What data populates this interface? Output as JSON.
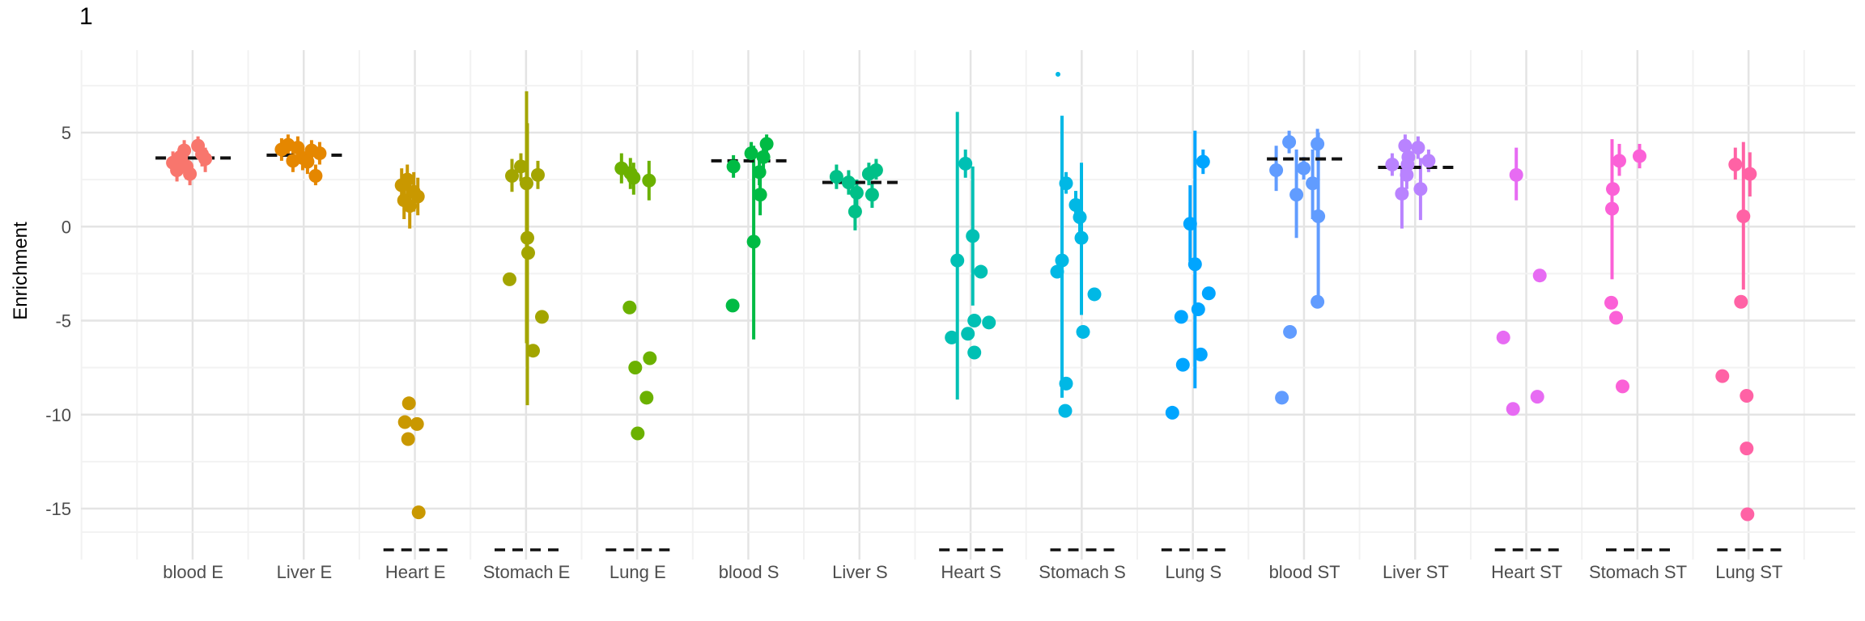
{
  "figure": {
    "title": "1"
  },
  "chart_data": {
    "type": "scatter",
    "title": "1",
    "xlabel": "",
    "ylabel": "Enrichment",
    "ylim": [
      -17.5,
      9.5
    ],
    "yticks": [
      {
        "label": "5",
        "value": 5
      },
      {
        "label": "0",
        "value": 0
      },
      {
        "label": "-5",
        "value": -5
      },
      {
        "label": "-10",
        "value": -10
      },
      {
        "label": "-15",
        "value": -15
      }
    ],
    "yminor": [
      7.5,
      2.5,
      -2.5,
      -7.5,
      -12.5,
      -16.25
    ],
    "grid": true,
    "legend": false,
    "mean_dash_color": "#111111",
    "floor_dash_color": "#111111",
    "categories": [
      {
        "name": "blood E",
        "color": "#F8766D",
        "mean": 3.65,
        "floor_dash": false,
        "points": [
          {
            "dx": -25,
            "v": 3.4,
            "lo": 2.8,
            "hi": 4.0
          },
          {
            "dx": -20,
            "v": 3.0,
            "lo": 2.4,
            "hi": 3.6
          },
          {
            "dx": -16,
            "v": 3.7,
            "lo": 3.0,
            "hi": 4.3
          },
          {
            "dx": -11,
            "v": 4.05,
            "lo": 3.5,
            "hi": 4.6
          },
          {
            "dx": -8,
            "v": 3.2,
            "lo": 2.5,
            "hi": 3.8
          },
          {
            "dx": -4,
            "v": 2.8,
            "lo": 2.2,
            "hi": 3.4
          },
          {
            "dx": 6,
            "v": 4.3,
            "lo": 3.8,
            "hi": 4.8
          },
          {
            "dx": 11,
            "v": 3.85,
            "lo": 3.2,
            "hi": 4.4
          },
          {
            "dx": 15,
            "v": 3.6,
            "lo": 2.9,
            "hi": 4.2
          }
        ]
      },
      {
        "name": "Liver E",
        "color": "#E58700",
        "mean": 3.8,
        "floor_dash": false,
        "points": [
          {
            "dx": -28,
            "v": 4.1,
            "lo": 3.5,
            "hi": 4.7
          },
          {
            "dx": -20,
            "v": 4.35,
            "lo": 3.8,
            "hi": 4.9
          },
          {
            "dx": -14,
            "v": 3.5,
            "lo": 2.9,
            "hi": 4.1
          },
          {
            "dx": -8,
            "v": 4.2,
            "lo": 3.6,
            "hi": 4.8
          },
          {
            "dx": -2,
            "v": 3.65,
            "lo": 3.0,
            "hi": 4.2
          },
          {
            "dx": 4,
            "v": 3.45,
            "lo": 2.8,
            "hi": 4.0
          },
          {
            "dx": 9,
            "v": 4.05,
            "lo": 3.4,
            "hi": 4.6
          },
          {
            "dx": 14,
            "v": 2.7,
            "lo": 2.2,
            "hi": 3.3
          },
          {
            "dx": 19,
            "v": 3.9,
            "lo": 3.3,
            "hi": 4.5
          }
        ]
      },
      {
        "name": "Heart E",
        "color": "#C99800",
        "mean": null,
        "floor_dash": true,
        "points": [
          {
            "dx": -17,
            "v": 2.2,
            "lo": 1.3,
            "hi": 3.1
          },
          {
            "dx": -10,
            "v": 2.5,
            "lo": 1.7,
            "hi": 3.3
          },
          {
            "dx": -14,
            "v": 1.4,
            "lo": 0.4,
            "hi": 2.4
          },
          {
            "dx": -2,
            "v": 1.85,
            "lo": 0.8,
            "hi": 2.9
          },
          {
            "dx": -7,
            "v": 1.1,
            "lo": -0.1,
            "hi": 2.3
          },
          {
            "dx": 3,
            "v": 1.6,
            "lo": 0.6,
            "hi": 2.6
          },
          {
            "dx": -8,
            "v": -9.4
          },
          {
            "dx": -13,
            "v": -10.4
          },
          {
            "dx": 2,
            "v": -10.5
          },
          {
            "dx": -9,
            "v": -11.3
          },
          {
            "dx": 4,
            "v": -15.2
          }
        ]
      },
      {
        "name": "Stomach E",
        "color": "#A3A500",
        "mean": null,
        "floor_dash": true,
        "points": [
          {
            "dx": -18,
            "v": 2.7,
            "lo": 1.85,
            "hi": 3.6
          },
          {
            "dx": -7,
            "v": 3.2,
            "lo": 2.4,
            "hi": 3.9
          },
          {
            "dx": 0,
            "v": 2.3,
            "lo": -6.2,
            "hi": 7.2
          },
          {
            "dx": 14,
            "v": 2.75,
            "lo": 2.0,
            "hi": 3.5
          },
          {
            "dx": 1,
            "v": -0.6,
            "lo": -9.5,
            "hi": 5.5
          },
          {
            "dx": 2,
            "v": -1.4
          },
          {
            "dx": -21,
            "v": -2.8
          },
          {
            "dx": 19,
            "v": -4.8
          },
          {
            "dx": 8,
            "v": -6.6
          }
        ]
      },
      {
        "name": "Lung E",
        "color": "#6BB100",
        "mean": null,
        "floor_dash": true,
        "points": [
          {
            "dx": -20,
            "v": 3.1,
            "lo": 2.3,
            "hi": 3.9
          },
          {
            "dx": -9,
            "v": 2.85,
            "lo": 2.0,
            "hi": 3.65
          },
          {
            "dx": -5,
            "v": 2.6,
            "lo": 1.7,
            "hi": 3.4
          },
          {
            "dx": 14,
            "v": 2.45,
            "lo": 1.4,
            "hi": 3.5
          },
          {
            "dx": -10,
            "v": -4.3
          },
          {
            "dx": 15,
            "v": -7.0
          },
          {
            "dx": -3,
            "v": -7.5
          },
          {
            "dx": 11,
            "v": -9.1
          },
          {
            "dx": 0,
            "v": -11.0
          }
        ]
      },
      {
        "name": "blood S",
        "color": "#00BB44",
        "mean": 3.5,
        "floor_dash": false,
        "points": [
          {
            "dx": -19,
            "v": 3.2,
            "lo": 2.6,
            "hi": 3.8
          },
          {
            "dx": 3,
            "v": 3.9,
            "lo": 3.4,
            "hi": 4.5
          },
          {
            "dx": 22,
            "v": 4.4,
            "lo": 3.9,
            "hi": 4.9
          },
          {
            "dx": 18,
            "v": 3.7,
            "lo": 3.1,
            "hi": 4.3
          },
          {
            "dx": 13,
            "v": 2.9,
            "lo": 2.2,
            "hi": 3.5
          },
          {
            "dx": 14,
            "v": 1.7,
            "lo": 0.6,
            "hi": 2.7
          },
          {
            "dx": 6,
            "v": -0.8,
            "lo": -6.0,
            "hi": 4.3
          },
          {
            "dx": -20,
            "v": -4.2
          }
        ]
      },
      {
        "name": "Liver S",
        "color": "#00C088",
        "mean": 2.35,
        "floor_dash": false,
        "points": [
          {
            "dx": -29,
            "v": 2.65,
            "lo": 2.0,
            "hi": 3.3
          },
          {
            "dx": -14,
            "v": 2.35,
            "lo": 1.7,
            "hi": 3.0
          },
          {
            "dx": -4,
            "v": 1.8,
            "lo": 1.1,
            "hi": 2.5
          },
          {
            "dx": 11,
            "v": 2.8,
            "lo": 2.2,
            "hi": 3.4
          },
          {
            "dx": 20,
            "v": 3.0,
            "lo": 2.5,
            "hi": 3.6
          },
          {
            "dx": 15,
            "v": 1.7,
            "lo": 1.0,
            "hi": 2.4
          },
          {
            "dx": -6,
            "v": 0.8,
            "lo": -0.2,
            "hi": 1.8
          }
        ]
      },
      {
        "name": "Heart S",
        "color": "#00C0B4",
        "mean": null,
        "floor_dash": true,
        "points": [
          {
            "dx": -7,
            "v": 3.35,
            "lo": 2.6,
            "hi": 4.1
          },
          {
            "dx": -17,
            "v": -1.8,
            "lo": -9.2,
            "hi": 6.1
          },
          {
            "dx": 2,
            "v": -0.5,
            "lo": -4.2,
            "hi": 3.2
          },
          {
            "dx": 12,
            "v": -2.4
          },
          {
            "dx": 4,
            "v": -5.0
          },
          {
            "dx": 22,
            "v": -5.1
          },
          {
            "dx": -4,
            "v": -5.7
          },
          {
            "dx": -24,
            "v": -5.9
          },
          {
            "dx": 4,
            "v": -6.7
          }
        ]
      },
      {
        "name": "Stomach S",
        "color": "#00B8E5",
        "mean": null,
        "floor_dash": true,
        "points": [
          {
            "dx": -30,
            "v": 8.1,
            "tiny": true
          },
          {
            "dx": -25,
            "v": -1.8,
            "lo": -9.1,
            "hi": 5.9
          },
          {
            "dx": -20,
            "v": 2.3,
            "lo": 1.75,
            "hi": 2.9
          },
          {
            "dx": -8,
            "v": 1.15,
            "lo": 0.4,
            "hi": 1.9
          },
          {
            "dx": -3,
            "v": 0.5,
            "lo": -0.3,
            "hi": 1.3
          },
          {
            "dx": -1,
            "v": -0.6,
            "lo": -4.7,
            "hi": 3.4
          },
          {
            "dx": -31,
            "v": -2.4
          },
          {
            "dx": 15,
            "v": -3.6
          },
          {
            "dx": 1,
            "v": -5.6
          },
          {
            "dx": -20,
            "v": -8.35
          },
          {
            "dx": -21,
            "v": -9.8
          }
        ]
      },
      {
        "name": "Lung S",
        "color": "#00A5FF",
        "mean": null,
        "floor_dash": true,
        "points": [
          {
            "dx": 12,
            "v": 3.45,
            "lo": 2.8,
            "hi": 4.1
          },
          {
            "dx": 2,
            "v": -2.0,
            "lo": -8.6,
            "hi": 5.1
          },
          {
            "dx": -4,
            "v": 0.15,
            "lo": -1.85,
            "hi": 2.2
          },
          {
            "dx": 19,
            "v": -3.55
          },
          {
            "dx": 6,
            "v": -4.4
          },
          {
            "dx": -15,
            "v": -4.8
          },
          {
            "dx": 9,
            "v": -6.8
          },
          {
            "dx": -13,
            "v": -7.35
          },
          {
            "dx": -26,
            "v": -9.9
          }
        ]
      },
      {
        "name": "blood ST",
        "color": "#619CFF",
        "mean": 3.6,
        "floor_dash": false,
        "points": [
          {
            "dx": -35,
            "v": 3.0,
            "lo": 1.9,
            "hi": 4.3
          },
          {
            "dx": -19,
            "v": 4.5,
            "lo": 3.9,
            "hi": 5.1
          },
          {
            "dx": -10,
            "v": 1.7,
            "lo": -0.6,
            "hi": 4.1
          },
          {
            "dx": -1,
            "v": 3.1,
            "lo": 2.5,
            "hi": 3.7
          },
          {
            "dx": 10,
            "v": 2.3,
            "lo": 0.4,
            "hi": 4.1
          },
          {
            "dx": 16,
            "v": 4.4,
            "lo": 3.7,
            "hi": 5.2
          },
          {
            "dx": 17,
            "v": 0.55,
            "lo": -3.9,
            "hi": 5.0
          },
          {
            "dx": 16,
            "v": -4.0
          },
          {
            "dx": -18,
            "v": -5.6
          },
          {
            "dx": -28,
            "v": -9.1
          }
        ]
      },
      {
        "name": "Liver ST",
        "color": "#B983FF",
        "mean": 3.15,
        "floor_dash": false,
        "points": [
          {
            "dx": -29,
            "v": 3.3,
            "lo": 2.7,
            "hi": 3.9
          },
          {
            "dx": -13,
            "v": 4.3,
            "lo": 3.7,
            "hi": 4.9
          },
          {
            "dx": -9,
            "v": 3.7,
            "lo": 3.1,
            "hi": 4.3
          },
          {
            "dx": -10,
            "v": 3.3,
            "lo": 2.6,
            "hi": 4.0
          },
          {
            "dx": -11,
            "v": 2.75,
            "lo": 2.0,
            "hi": 3.5
          },
          {
            "dx": 3,
            "v": 4.2,
            "lo": 3.6,
            "hi": 4.8
          },
          {
            "dx": 6,
            "v": 2.0,
            "lo": 0.35,
            "hi": 3.65
          },
          {
            "dx": -17,
            "v": 1.75,
            "lo": -0.1,
            "hi": 3.2
          },
          {
            "dx": 16,
            "v": 3.5,
            "lo": 2.9,
            "hi": 4.1
          }
        ]
      },
      {
        "name": "Heart ST",
        "color": "#E76BF3",
        "mean": null,
        "floor_dash": true,
        "points": [
          {
            "dx": -13,
            "v": 2.75,
            "lo": 1.4,
            "hi": 4.2
          },
          {
            "dx": 16,
            "v": -2.6
          },
          {
            "dx": -29,
            "v": -5.9
          },
          {
            "dx": 13,
            "v": -9.05
          },
          {
            "dx": -17,
            "v": -9.7
          }
        ]
      },
      {
        "name": "Stomach ST",
        "color": "#FB61D7",
        "mean": null,
        "floor_dash": true,
        "points": [
          {
            "dx": -23,
            "v": 3.5,
            "lo": 2.7,
            "hi": 4.4
          },
          {
            "dx": 2,
            "v": 3.75,
            "lo": 3.1,
            "hi": 4.4
          },
          {
            "dx": -32,
            "v": 0.95,
            "lo": -2.8,
            "hi": 4.65
          },
          {
            "dx": -31,
            "v": 2.0
          },
          {
            "dx": -33,
            "v": -4.05
          },
          {
            "dx": -27,
            "v": -4.85
          },
          {
            "dx": -19,
            "v": -8.5
          }
        ]
      },
      {
        "name": "Lung ST",
        "color": "#FF62A5",
        "mean": null,
        "floor_dash": true,
        "points": [
          {
            "dx": -17,
            "v": 3.3,
            "lo": 2.5,
            "hi": 4.2
          },
          {
            "dx": 1,
            "v": 2.8,
            "lo": 1.6,
            "hi": 3.95
          },
          {
            "dx": -7,
            "v": 0.55,
            "lo": -3.35,
            "hi": 4.5
          },
          {
            "dx": -10,
            "v": -4.0
          },
          {
            "dx": -33,
            "v": -7.95
          },
          {
            "dx": -3,
            "v": -9.0
          },
          {
            "dx": -3,
            "v": -11.8
          },
          {
            "dx": -2,
            "v": -15.3
          }
        ]
      }
    ]
  }
}
